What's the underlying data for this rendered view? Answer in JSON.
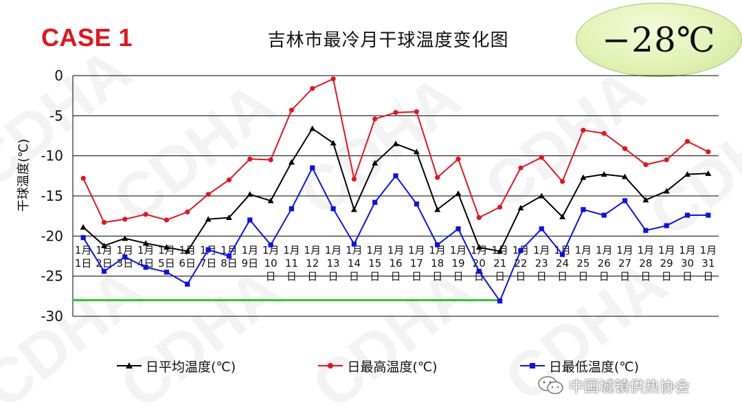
{
  "header": {
    "case_label": "CASE 1",
    "title": "吉林市最冷月干球温度变化图"
  },
  "badge": {
    "text": "−28℃"
  },
  "watermark": {
    "text": "CDHA"
  },
  "footer": {
    "org_name": "中国城镇供热协会",
    "org_icon": "wechat-icon"
  },
  "colors": {
    "avg": "#000000",
    "max": "#e8121c",
    "min": "#0a10f0",
    "reference_line": "#33c22b",
    "case_label": "#e8121c",
    "badge_fill": "#e3f2b6"
  },
  "chart_data": {
    "type": "line",
    "title": "吉林市最冷月干球温度变化图",
    "ylabel": "干球温度(℃)",
    "xlabel": "",
    "ylim": [
      -30,
      0
    ],
    "yticks": [
      0,
      -5,
      -10,
      -15,
      -20,
      -25,
      -30
    ],
    "grid": true,
    "legend_position": "bottom",
    "categories": [
      "1月1日",
      "1月2日",
      "1月3日",
      "1月4日",
      "1月5日",
      "1月6日",
      "1月7日",
      "1月8日",
      "1月9日",
      "1月10日",
      "1月11日",
      "1月12日",
      "1月13日",
      "1月14日",
      "1月15日",
      "1月16日",
      "1月17日",
      "1月18日",
      "1月19日",
      "1月20日",
      "1月21日",
      "1月22日",
      "1月23日",
      "1月24日",
      "1月25日",
      "1月26日",
      "1月27日",
      "1月28日",
      "1月29日",
      "1月30日",
      "1月31日"
    ],
    "series": [
      {
        "name": "日平均温度(℃)",
        "color": "#000000",
        "marker": "triangle",
        "values": [
          -18.9,
          -21.2,
          -20.3,
          -20.9,
          -21.4,
          -21.9,
          -17.9,
          -17.7,
          -14.8,
          -15.6,
          -10.8,
          -6.6,
          -8.4,
          -16.7,
          -10.9,
          -8.5,
          -9.5,
          -16.7,
          -14.7,
          -21.4,
          -21.9,
          -16.5,
          -15.0,
          -17.6,
          -12.7,
          -12.3,
          -12.6,
          -15.5,
          -14.4,
          -12.3,
          -12.2
        ]
      },
      {
        "name": "日最高温度(℃)",
        "color": "#e8121c",
        "marker": "circle",
        "values": [
          -12.8,
          -18.3,
          -17.9,
          -17.3,
          -18.0,
          -17.0,
          -14.8,
          -13.0,
          -10.4,
          -10.5,
          -4.3,
          -1.6,
          -0.4,
          -12.9,
          -5.4,
          -4.6,
          -4.5,
          -12.7,
          -10.4,
          -17.7,
          -16.4,
          -11.5,
          -10.2,
          -13.2,
          -6.8,
          -7.2,
          -9.1,
          -11.1,
          -10.5,
          -8.2,
          -9.5
        ]
      },
      {
        "name": "日最低温度(℃)",
        "color": "#0a10f0",
        "marker": "square",
        "values": [
          -20.2,
          -24.4,
          -22.6,
          -23.9,
          -24.5,
          -26.0,
          -21.7,
          -22.5,
          -18.0,
          -21.1,
          -16.6,
          -11.5,
          -16.6,
          -21.0,
          -15.8,
          -12.5,
          -16.0,
          -21.1,
          -19.1,
          -24.4,
          -28.1,
          -21.8,
          -19.1,
          -22.3,
          -16.7,
          -17.4,
          -15.6,
          -19.3,
          -18.7,
          -17.4,
          -17.4
        ]
      }
    ],
    "reference_line": {
      "value": -28,
      "from_category": "1月1日",
      "to_category": "1月21日"
    }
  }
}
